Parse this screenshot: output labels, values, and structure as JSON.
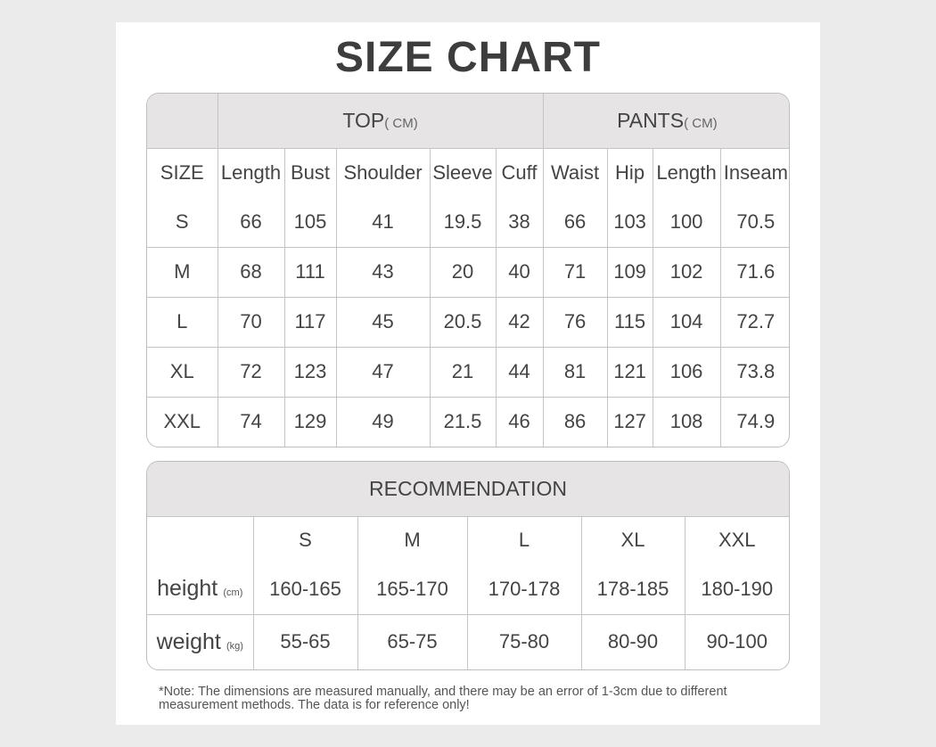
{
  "title": "SIZE CHART",
  "size_table": {
    "group_headers": [
      {
        "label": "TOP",
        "unit": "( CM)"
      },
      {
        "label": "PANTS",
        "unit": "( CM)"
      }
    ],
    "columns": [
      "SIZE",
      "Length",
      "Bust",
      "Shoulder",
      "Sleeve",
      "Cuff",
      "Waist",
      "Hip",
      "Length",
      "Inseam"
    ],
    "rows": [
      [
        "S",
        "66",
        "105",
        "41",
        "19.5",
        "38",
        "66",
        "103",
        "100",
        "70.5"
      ],
      [
        "M",
        "68",
        "111",
        "43",
        "20",
        "40",
        "71",
        "109",
        "102",
        "71.6"
      ],
      [
        "L",
        "70",
        "117",
        "45",
        "20.5",
        "42",
        "76",
        "115",
        "104",
        "72.7"
      ],
      [
        "XL",
        "72",
        "123",
        "47",
        "21",
        "44",
        "81",
        "121",
        "106",
        "73.8"
      ],
      [
        "XXL",
        "74",
        "129",
        "49",
        "21.5",
        "46",
        "86",
        "127",
        "108",
        "74.9"
      ]
    ]
  },
  "recommendation": {
    "title": "RECOMMENDATION",
    "sizes": [
      "S",
      "M",
      "L",
      "XL",
      "XXL"
    ],
    "rows": [
      {
        "label": "height",
        "unit": "(cm)",
        "values": [
          "160-165",
          "165-170",
          "170-178",
          "178-185",
          "180-190"
        ]
      },
      {
        "label": "weight",
        "unit": "(kg)",
        "values": [
          "55-65",
          "65-75",
          "75-80",
          "80-90",
          "90-100"
        ]
      }
    ]
  },
  "note": "*Note: The dimensions are measured manually, and there may be an error of 1-3cm due to different measurement methods. The data is for reference only!"
}
